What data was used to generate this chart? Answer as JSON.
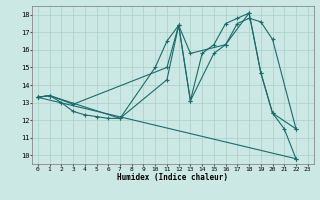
{
  "xlabel": "Humidex (Indice chaleur)",
  "bg_color": "#cce8e4",
  "grid_color": "#aacfca",
  "line_color": "#1a6b6b",
  "xlim": [
    -0.5,
    23.5
  ],
  "ylim": [
    9.5,
    18.5
  ],
  "xticks": [
    0,
    1,
    2,
    3,
    4,
    5,
    6,
    7,
    8,
    9,
    10,
    11,
    12,
    13,
    14,
    15,
    16,
    17,
    18,
    19,
    20,
    21,
    22,
    23
  ],
  "yticks": [
    10,
    11,
    12,
    13,
    14,
    15,
    16,
    17,
    18
  ],
  "series1": [
    [
      0,
      13.3
    ],
    [
      1,
      13.4
    ],
    [
      2,
      13.0
    ],
    [
      3,
      12.5
    ],
    [
      4,
      12.3
    ],
    [
      5,
      12.2
    ],
    [
      6,
      12.1
    ],
    [
      7,
      12.1
    ],
    [
      10,
      15.0
    ],
    [
      11,
      16.5
    ],
    [
      12,
      17.4
    ],
    [
      13,
      13.1
    ],
    [
      14,
      15.8
    ],
    [
      15,
      16.3
    ],
    [
      16,
      17.5
    ],
    [
      17,
      17.8
    ],
    [
      18,
      18.1
    ],
    [
      19,
      14.7
    ],
    [
      20,
      12.4
    ],
    [
      21,
      11.5
    ],
    [
      22,
      9.8
    ]
  ],
  "series2": [
    [
      0,
      13.3
    ],
    [
      1,
      13.4
    ],
    [
      3,
      12.9
    ],
    [
      11,
      15.0
    ],
    [
      12,
      17.4
    ],
    [
      13,
      15.8
    ],
    [
      16,
      16.3
    ],
    [
      17,
      17.5
    ],
    [
      18,
      17.8
    ],
    [
      19,
      17.6
    ],
    [
      20,
      16.6
    ],
    [
      22,
      11.5
    ]
  ],
  "series3": [
    [
      0,
      13.3
    ],
    [
      1,
      13.4
    ],
    [
      7,
      12.1
    ],
    [
      11,
      14.3
    ],
    [
      12,
      17.4
    ],
    [
      13,
      13.1
    ],
    [
      15,
      15.8
    ],
    [
      16,
      16.3
    ],
    [
      18,
      18.1
    ],
    [
      19,
      14.7
    ],
    [
      20,
      12.4
    ],
    [
      22,
      11.5
    ]
  ],
  "series4": [
    [
      0,
      13.3
    ],
    [
      22,
      9.8
    ]
  ]
}
